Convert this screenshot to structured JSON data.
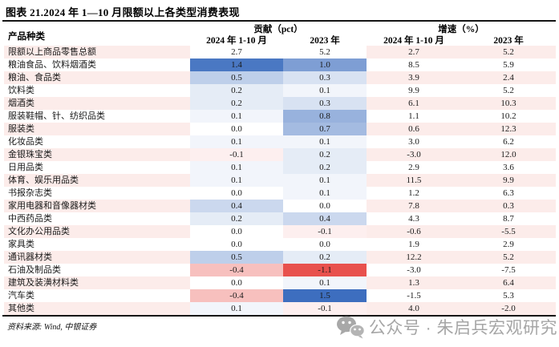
{
  "title": "图表 21.2024 年 1—10 月限额以上各类型消费表现",
  "table": {
    "row_header": "产品种类",
    "group_headers": [
      {
        "label": "贡献（pct）"
      },
      {
        "label": "增速（%）"
      }
    ],
    "sub_headers": [
      "2024 年 1-10 月",
      "2023 年",
      "2024 年 1-10 月",
      "2023 年"
    ],
    "stripe_color": "#FCECEA",
    "heatmap": {
      "positive_color": "#3D6EBF",
      "negative_color": "#E8514D",
      "positive_max": 1.5,
      "negative_max": 1.1
    },
    "rows": [
      {
        "name": "限额以上商品零售总额",
        "values": [
          "2.7",
          "5.2",
          "2.7",
          "5.2"
        ],
        "is_total": true
      },
      {
        "name": "粮油食品、饮料烟酒类",
        "values": [
          "1.4",
          "1.0",
          "8.5",
          "5.9"
        ]
      },
      {
        "name": "粮油、食品类",
        "values": [
          "0.5",
          "0.3",
          "3.9",
          "2.4"
        ]
      },
      {
        "name": "饮料类",
        "values": [
          "0.2",
          "0.1",
          "9.9",
          "5.2"
        ]
      },
      {
        "name": "烟酒类",
        "values": [
          "0.2",
          "0.3",
          "6.1",
          "10.3"
        ]
      },
      {
        "name": "服装鞋帽、针、纺织品类",
        "values": [
          "0.1",
          "0.8",
          "1.1",
          "10.2"
        ]
      },
      {
        "name": "服装类",
        "values": [
          "0.0",
          "0.7",
          "0.6",
          "12.3"
        ]
      },
      {
        "name": "化妆品类",
        "values": [
          "0.1",
          "0.1",
          "3.0",
          "6.2"
        ]
      },
      {
        "name": "金银珠宝类",
        "values": [
          "-0.1",
          "0.2",
          "-3.0",
          "12.0"
        ]
      },
      {
        "name": "日用品类",
        "values": [
          "0.1",
          "0.2",
          "2.9",
          "3.6"
        ]
      },
      {
        "name": "体育、娱乐用品类",
        "values": [
          "0.1",
          "0.1",
          "11.5",
          "9.9"
        ]
      },
      {
        "name": "书报杂志类",
        "values": [
          "0.0",
          "0.1",
          "1.2",
          "6.3"
        ]
      },
      {
        "name": "家用电器和音像器材类",
        "values": [
          "0.4",
          "0.0",
          "7.8",
          "0.3"
        ]
      },
      {
        "name": "中西药品类",
        "values": [
          "0.2",
          "0.4",
          "4.3",
          "8.7"
        ]
      },
      {
        "name": "文化办公用品类",
        "values": [
          "0.0",
          "-0.1",
          "-0.6",
          "-5.5"
        ]
      },
      {
        "name": "家具类",
        "values": [
          "0.0",
          "0.0",
          "1.9",
          "2.9"
        ]
      },
      {
        "name": "通讯器材类",
        "values": [
          "0.5",
          "0.2",
          "12.2",
          "5.2"
        ]
      },
      {
        "name": "石油及制品类",
        "values": [
          "-0.4",
          "-1.1",
          "-3.0",
          "-7.5"
        ]
      },
      {
        "name": "建筑及装潢材料类",
        "values": [
          "0.0",
          "0.1",
          "1.3",
          "6.4"
        ]
      },
      {
        "name": "汽车类",
        "values": [
          "-0.4",
          "1.5",
          "-1.5",
          "5.3"
        ]
      },
      {
        "name": "其他类",
        "values": [
          "0.1",
          "-0.1",
          "4.0",
          "-2.0"
        ]
      }
    ]
  },
  "footer": {
    "source": "资料来源: Wind, 中银证券"
  },
  "watermark": {
    "wechat_label": "公众号 · 朱启兵宏观研究"
  },
  "chart_data": {
    "type": "table",
    "title": "图表 21.2024 年 1—10 月限额以上各类型消费表现",
    "column_groups": [
      "贡献（pct）",
      "增速（%）"
    ],
    "columns": [
      "产品种类",
      "贡献（pct）2024 年 1-10 月",
      "贡献（pct）2023 年",
      "增速（%）2024 年 1-10 月",
      "增速（%）2023 年"
    ],
    "rows": [
      [
        "限额以上商品零售总额",
        2.7,
        5.2,
        2.7,
        5.2
      ],
      [
        "粮油食品、饮料烟酒类",
        1.4,
        1.0,
        8.5,
        5.9
      ],
      [
        "粮油、食品类",
        0.5,
        0.3,
        3.9,
        2.4
      ],
      [
        "饮料类",
        0.2,
        0.1,
        9.9,
        5.2
      ],
      [
        "烟酒类",
        0.2,
        0.3,
        6.1,
        10.3
      ],
      [
        "服装鞋帽、针、纺织品类",
        0.1,
        0.8,
        1.1,
        10.2
      ],
      [
        "服装类",
        0.0,
        0.7,
        0.6,
        12.3
      ],
      [
        "化妆品类",
        0.1,
        0.1,
        3.0,
        6.2
      ],
      [
        "金银珠宝类",
        -0.1,
        0.2,
        -3.0,
        12.0
      ],
      [
        "日用品类",
        0.1,
        0.2,
        2.9,
        3.6
      ],
      [
        "体育、娱乐用品类",
        0.1,
        0.1,
        11.5,
        9.9
      ],
      [
        "书报杂志类",
        0.0,
        0.1,
        1.2,
        6.3
      ],
      [
        "家用电器和音像器材类",
        0.4,
        0.0,
        7.8,
        0.3
      ],
      [
        "中西药品类",
        0.2,
        0.4,
        4.3,
        8.7
      ],
      [
        "文化办公用品类",
        0.0,
        -0.1,
        -0.6,
        -5.5
      ],
      [
        "家具类",
        0.0,
        0.0,
        1.9,
        2.9
      ],
      [
        "通讯器材类",
        0.5,
        0.2,
        12.2,
        5.2
      ],
      [
        "石油及制品类",
        -0.4,
        -1.1,
        -3.0,
        -7.5
      ],
      [
        "建筑及装潢材料类",
        0.0,
        0.1,
        1.3,
        6.4
      ],
      [
        "汽车类",
        -0.4,
        1.5,
        -1.5,
        5.3
      ],
      [
        "其他类",
        0.1,
        -0.1,
        4.0,
        -2.0
      ]
    ],
    "notes": "贡献列采用蓝(正)—白(零)—红(负)色阶条件格式；总额行无色阶；其余列为粉白相间条纹"
  }
}
